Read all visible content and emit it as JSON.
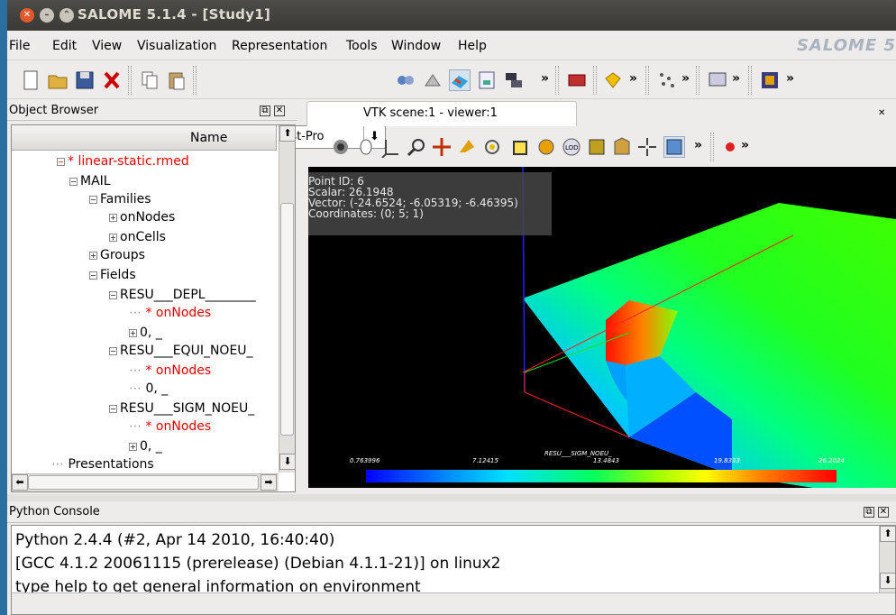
{
  "window": {
    "title": "SALOME 5.1.4 - [Study1]",
    "brand": "SALOME 5"
  },
  "menu": [
    "File",
    "Edit",
    "View",
    "Visualization",
    "Representation",
    "Tools",
    "Window",
    "Help"
  ],
  "toolbar": {
    "module_selector": "Post-Pro"
  },
  "object_browser": {
    "title": "Object Browser",
    "column_header": "Name",
    "tree": [
      {
        "label": "* linear-static.rmed",
        "style": "red",
        "expander": "minus"
      },
      {
        "label": "MAIL",
        "style": "normal",
        "expander": "minus"
      },
      {
        "label": "Families",
        "style": "normal",
        "expander": "minus"
      },
      {
        "label": "onNodes",
        "style": "normal",
        "expander": "plus"
      },
      {
        "label": "onCells",
        "style": "normal",
        "expander": "plus"
      },
      {
        "label": "Groups",
        "style": "normal",
        "expander": "plus"
      },
      {
        "label": "Fields",
        "style": "normal",
        "expander": "minus"
      },
      {
        "label": "RESU___DEPL________",
        "style": "normal",
        "expander": "minus"
      },
      {
        "label": "* onNodes",
        "style": "red",
        "expander": "none"
      },
      {
        "label": "0, _",
        "style": "normal",
        "expander": "plus"
      },
      {
        "label": "RESU___EQUI_NOEU_",
        "style": "normal",
        "expander": "minus"
      },
      {
        "label": "* onNodes",
        "style": "red",
        "expander": "none"
      },
      {
        "label": "0, _",
        "style": "normal",
        "expander": "none"
      },
      {
        "label": "RESU___SIGM_NOEU_",
        "style": "normal",
        "expander": "minus"
      },
      {
        "label": "* onNodes",
        "style": "red",
        "expander": "none"
      },
      {
        "label": "0, _",
        "style": "normal",
        "expander": "plus"
      },
      {
        "label": "Presentations",
        "style": "normal",
        "expander": "none"
      }
    ]
  },
  "viewer": {
    "tab_label": "VTK scene:1 - viewer:1",
    "point_info": {
      "point_id": "Point ID: 6",
      "scalar": "Scalar: 26.1948",
      "vector": "Vector: (-24.6524; -6.05319; -6.46395)",
      "coordinates": "Coordinates: (0; 5; 1)"
    },
    "scalar_bar": {
      "title": "RESU___SIGM_NOEU_",
      "labels": [
        "0.763996",
        "7.12415",
        "13.4843",
        "19.8333",
        "26.2024"
      ]
    }
  },
  "python_console": {
    "title": "Python Console",
    "lines": [
      "Python 2.4.4 (#2, Apr 14 2010, 16:40:40)",
      "[GCC 4.1.2 20061115 (prerelease) (Debian 4.1.1-21)] on linux2",
      "type help to get general information on environment"
    ]
  }
}
